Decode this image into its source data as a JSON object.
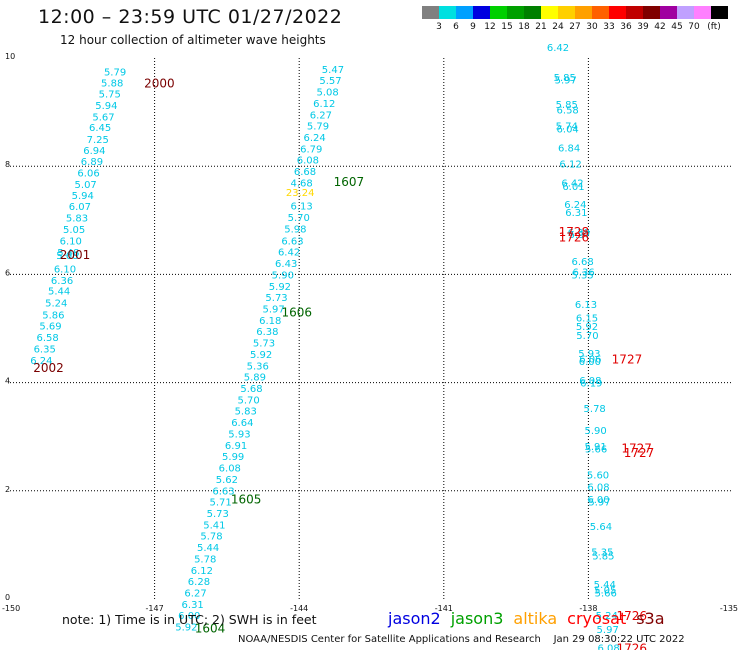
{
  "title": "12:00 – 23:59 UTC 01/27/2022",
  "subtitle": "12 hour collection of altimeter wave heights",
  "colorbar": {
    "colors": [
      "#808080",
      "#00e0e0",
      "#00a0ff",
      "#0000e0",
      "#00d000",
      "#00a000",
      "#008000",
      "#ffff00",
      "#ffd000",
      "#ffa000",
      "#ff6000",
      "#ff0000",
      "#c00000",
      "#800000",
      "#a000a0",
      "#c0a0ff",
      "#ff80ff",
      "#000000"
    ],
    "labels": [
      "3",
      "6",
      "9",
      "12",
      "15",
      "18",
      "21",
      "24",
      "27",
      "30",
      "33",
      "36",
      "39",
      "42",
      "45",
      "70",
      "(ft)"
    ]
  },
  "axes": {
    "x_ticks": [
      "-150",
      "-147",
      "-144",
      "-141",
      "-138",
      "-135"
    ],
    "y_ticks": [
      "0",
      "2",
      "4",
      "6",
      "8",
      "10"
    ]
  },
  "map_data": {
    "projection": "longitude-latitude, 10°N–0 latitude band, 150°W–135°W",
    "x_range": [
      -150,
      -135
    ],
    "y_range": [
      0,
      10
    ],
    "grid_lon": [
      -147,
      -144,
      -141,
      -138
    ],
    "grid_lat": [
      2,
      4,
      6,
      8
    ],
    "series": [
      {
        "color": "#00c8e6",
        "points": [
          {
            "lon": -147.82,
            "lat": 9.75,
            "v": "5.79"
          },
          {
            "lon": -147.88,
            "lat": 9.55,
            "v": "5.88"
          },
          {
            "lon": -147.93,
            "lat": 9.34,
            "v": "5.75"
          },
          {
            "lon": -148.0,
            "lat": 9.13,
            "v": "5.94"
          },
          {
            "lon": -148.06,
            "lat": 8.92,
            "v": "5.67"
          },
          {
            "lon": -148.13,
            "lat": 8.72,
            "v": "6.45"
          },
          {
            "lon": -148.18,
            "lat": 8.5,
            "v": "7.25"
          },
          {
            "lon": -148.25,
            "lat": 8.3,
            "v": "6.94"
          },
          {
            "lon": -148.3,
            "lat": 8.1,
            "v": "6.89"
          },
          {
            "lon": -148.37,
            "lat": 7.88,
            "v": "6.06"
          },
          {
            "lon": -148.43,
            "lat": 7.67,
            "v": "5.07"
          },
          {
            "lon": -148.49,
            "lat": 7.47,
            "v": "5.94"
          },
          {
            "lon": -148.55,
            "lat": 7.26,
            "v": "6.07"
          },
          {
            "lon": -148.61,
            "lat": 7.05,
            "v": "5.83"
          },
          {
            "lon": -148.67,
            "lat": 6.84,
            "v": "5.05"
          },
          {
            "lon": -148.74,
            "lat": 6.63,
            "v": "6.10"
          },
          {
            "lon": -148.79,
            "lat": 6.41,
            "v": "5.48"
          },
          {
            "lon": -148.81,
            "lat": 6.36,
            "v": "5.68"
          },
          {
            "lon": -148.86,
            "lat": 6.11,
            "v": "6.10"
          },
          {
            "lon": -148.92,
            "lat": 5.9,
            "v": "6.36"
          },
          {
            "lon": -148.98,
            "lat": 5.7,
            "v": "5.44"
          },
          {
            "lon": -149.04,
            "lat": 5.48,
            "v": "5.24"
          },
          {
            "lon": -149.1,
            "lat": 5.26,
            "v": "5.86"
          },
          {
            "lon": -149.16,
            "lat": 5.06,
            "v": "5.69"
          },
          {
            "lon": -149.22,
            "lat": 4.84,
            "v": "6.58"
          },
          {
            "lon": -149.28,
            "lat": 4.63,
            "v": "6.35"
          },
          {
            "lon": -149.35,
            "lat": 4.42,
            "v": "6.24"
          },
          {
            "lon": -143.3,
            "lat": 9.8,
            "v": "5.47"
          },
          {
            "lon": -143.35,
            "lat": 9.59,
            "v": "5.57"
          },
          {
            "lon": -143.41,
            "lat": 9.38,
            "v": "5.08"
          },
          {
            "lon": -143.48,
            "lat": 9.17,
            "v": "6.12"
          },
          {
            "lon": -143.55,
            "lat": 8.96,
            "v": "6.27"
          },
          {
            "lon": -143.61,
            "lat": 8.75,
            "v": "5.79"
          },
          {
            "lon": -143.68,
            "lat": 8.54,
            "v": "6.24"
          },
          {
            "lon": -143.75,
            "lat": 8.33,
            "v": "6.79"
          },
          {
            "lon": -143.82,
            "lat": 8.12,
            "v": "6.08"
          },
          {
            "lon": -143.88,
            "lat": 7.91,
            "v": "6.68"
          },
          {
            "lon": -143.95,
            "lat": 7.7,
            "v": "4.68"
          },
          {
            "lon": -143.95,
            "lat": 7.27,
            "v": "6.13"
          },
          {
            "lon": -144.01,
            "lat": 7.06,
            "v": "5.70"
          },
          {
            "lon": -144.08,
            "lat": 6.85,
            "v": "5.98"
          },
          {
            "lon": -144.14,
            "lat": 6.63,
            "v": "6.63"
          },
          {
            "lon": -144.21,
            "lat": 6.42,
            "v": "6.42"
          },
          {
            "lon": -144.27,
            "lat": 6.21,
            "v": "6.43"
          },
          {
            "lon": -144.34,
            "lat": 6.0,
            "v": "5.90"
          },
          {
            "lon": -144.4,
            "lat": 5.79,
            "v": "5.92"
          },
          {
            "lon": -144.47,
            "lat": 5.58,
            "v": "5.73"
          },
          {
            "lon": -144.53,
            "lat": 5.37,
            "v": "5.97"
          },
          {
            "lon": -144.6,
            "lat": 5.16,
            "v": "6.18"
          },
          {
            "lon": -144.66,
            "lat": 4.95,
            "v": "6.38"
          },
          {
            "lon": -144.73,
            "lat": 4.74,
            "v": "5.73"
          },
          {
            "lon": -144.79,
            "lat": 4.53,
            "v": "5.92"
          },
          {
            "lon": -144.86,
            "lat": 4.32,
            "v": "5.36"
          },
          {
            "lon": -144.92,
            "lat": 4.11,
            "v": "5.89"
          },
          {
            "lon": -144.99,
            "lat": 3.9,
            "v": "5.68"
          },
          {
            "lon": -145.05,
            "lat": 3.69,
            "v": "5.70"
          },
          {
            "lon": -145.11,
            "lat": 3.48,
            "v": "5.83"
          },
          {
            "lon": -145.18,
            "lat": 3.27,
            "v": "6.64"
          },
          {
            "lon": -145.24,
            "lat": 3.06,
            "v": "5.93"
          },
          {
            "lon": -145.31,
            "lat": 2.85,
            "v": "6.91"
          },
          {
            "lon": -145.37,
            "lat": 2.64,
            "v": "5.99"
          },
          {
            "lon": -145.44,
            "lat": 2.43,
            "v": "6.08"
          },
          {
            "lon": -145.5,
            "lat": 2.22,
            "v": "5.62"
          },
          {
            "lon": -145.57,
            "lat": 2.01,
            "v": "6.63"
          },
          {
            "lon": -145.63,
            "lat": 1.8,
            "v": "5.71"
          },
          {
            "lon": -145.69,
            "lat": 1.59,
            "v": "5.73"
          },
          {
            "lon": -145.76,
            "lat": 1.38,
            "v": "5.41"
          },
          {
            "lon": -145.82,
            "lat": 1.17,
            "v": "5.78"
          },
          {
            "lon": -145.89,
            "lat": 0.96,
            "v": "5.44"
          },
          {
            "lon": -145.95,
            "lat": 0.75,
            "v": "5.78"
          },
          {
            "lon": -146.02,
            "lat": 0.54,
            "v": "6.12"
          },
          {
            "lon": -146.08,
            "lat": 0.33,
            "v": "6.28"
          },
          {
            "lon": -146.15,
            "lat": 0.12,
            "v": "6.27"
          },
          {
            "lon": -146.21,
            "lat": -0.09,
            "v": "6.31"
          },
          {
            "lon": -146.28,
            "lat": -0.3,
            "v": "6.00"
          },
          {
            "lon": -146.34,
            "lat": -0.51,
            "v": "5.92"
          },
          {
            "lon": -138.63,
            "lat": 10.2,
            "v": "6.42"
          },
          {
            "lon": -138.49,
            "lat": 9.65,
            "v": "5.85"
          },
          {
            "lon": -138.47,
            "lat": 9.6,
            "v": "5.97"
          },
          {
            "lon": -138.45,
            "lat": 9.15,
            "v": "5.85"
          },
          {
            "lon": -138.43,
            "lat": 9.05,
            "v": "6.58"
          },
          {
            "lon": -138.45,
            "lat": 8.75,
            "v": "5.74"
          },
          {
            "lon": -138.43,
            "lat": 8.7,
            "v": "6.04"
          },
          {
            "lon": -138.4,
            "lat": 8.35,
            "v": "6.84"
          },
          {
            "lon": -138.37,
            "lat": 8.05,
            "v": "6.12"
          },
          {
            "lon": -138.33,
            "lat": 7.7,
            "v": "6.42"
          },
          {
            "lon": -138.31,
            "lat": 7.63,
            "v": "6.01"
          },
          {
            "lon": -138.27,
            "lat": 7.3,
            "v": "6.24"
          },
          {
            "lon": -138.25,
            "lat": 7.15,
            "v": "6.31"
          },
          {
            "lon": -138.2,
            "lat": 6.78,
            "v": "6.38"
          },
          {
            "lon": -138.18,
            "lat": 6.75,
            "v": "5.97"
          },
          {
            "lon": -138.12,
            "lat": 6.25,
            "v": "6.68"
          },
          {
            "lon": -138.1,
            "lat": 6.05,
            "v": "6.36"
          },
          {
            "lon": -138.12,
            "lat": 6.0,
            "v": "5.35"
          },
          {
            "lon": -138.05,
            "lat": 5.45,
            "v": "6.13"
          },
          {
            "lon": -138.03,
            "lat": 5.2,
            "v": "6.15"
          },
          {
            "lon": -138.03,
            "lat": 5.05,
            "v": "5.92"
          },
          {
            "lon": -138.02,
            "lat": 4.88,
            "v": "5.70"
          },
          {
            "lon": -137.98,
            "lat": 4.55,
            "v": "5.93"
          },
          {
            "lon": -137.96,
            "lat": 4.45,
            "v": "6.06"
          },
          {
            "lon": -137.97,
            "lat": 4.4,
            "v": "6.00"
          },
          {
            "lon": -137.96,
            "lat": 4.05,
            "v": "6.08"
          },
          {
            "lon": -137.94,
            "lat": 4.0,
            "v": "6.19"
          },
          {
            "lon": -137.87,
            "lat": 3.53,
            "v": "5.78"
          },
          {
            "lon": -137.85,
            "lat": 3.12,
            "v": "5.90"
          },
          {
            "lon": -137.85,
            "lat": 2.83,
            "v": "5.91"
          },
          {
            "lon": -137.84,
            "lat": 2.78,
            "v": "5.66"
          },
          {
            "lon": -137.8,
            "lat": 2.3,
            "v": "5.60"
          },
          {
            "lon": -137.79,
            "lat": 2.08,
            "v": "6.08"
          },
          {
            "lon": -137.79,
            "lat": 1.85,
            "v": "6.00"
          },
          {
            "lon": -137.77,
            "lat": 1.8,
            "v": "5.97"
          },
          {
            "lon": -137.74,
            "lat": 1.35,
            "v": "5.64"
          },
          {
            "lon": -137.71,
            "lat": 0.88,
            "v": "5.35"
          },
          {
            "lon": -137.69,
            "lat": 0.8,
            "v": "5.85"
          },
          {
            "lon": -137.66,
            "lat": 0.28,
            "v": "5.44"
          },
          {
            "lon": -137.65,
            "lat": 0.18,
            "v": "5.05"
          },
          {
            "lon": -137.64,
            "lat": 0.12,
            "v": "5.66"
          },
          {
            "lon": -137.62,
            "lat": -0.3,
            "v": "5.24"
          },
          {
            "lon": -137.6,
            "lat": -0.55,
            "v": "5.97"
          },
          {
            "lon": -137.58,
            "lat": -0.9,
            "v": "6.08"
          }
        ]
      },
      {
        "color": "#ffd800",
        "points": [
          {
            "lon": -143.98,
            "lat": 7.52,
            "v": "23.24"
          }
        ]
      }
    ],
    "pass_labels": [
      {
        "text": "2000",
        "color": "#7a0000",
        "lon": -146.9,
        "lat": 9.55
      },
      {
        "text": "2001",
        "color": "#7a0000",
        "lon": -148.65,
        "lat": 6.38
      },
      {
        "text": "2002",
        "color": "#7a0000",
        "lon": -149.2,
        "lat": 4.29
      },
      {
        "text": "1607",
        "color": "#006400",
        "lon": -142.97,
        "lat": 7.73
      },
      {
        "text": "1606",
        "color": "#006400",
        "lon": -144.05,
        "lat": 5.31
      },
      {
        "text": "1605",
        "color": "#006400",
        "lon": -145.1,
        "lat": 1.86
      },
      {
        "text": "1604",
        "color": "#006400",
        "lon": -145.85,
        "lat": -0.53
      },
      {
        "text": "1728",
        "color": "#e00000",
        "lon": -138.3,
        "lat": 6.8
      },
      {
        "text": "1726",
        "color": "#e00000",
        "lon": -138.3,
        "lat": 6.7
      },
      {
        "text": "1727",
        "color": "#e00000",
        "lon": -137.2,
        "lat": 4.45
      },
      {
        "text": "1727",
        "color": "#e00000",
        "lon": -137.0,
        "lat": 2.8
      },
      {
        "text": "1727",
        "color": "#e00000",
        "lon": -136.95,
        "lat": 2.72
      },
      {
        "text": "1726",
        "color": "#e00000",
        "lon": -137.1,
        "lat": -0.3
      },
      {
        "text": "1726",
        "color": "#e00000",
        "lon": -137.1,
        "lat": -0.9
      }
    ]
  },
  "note": "note: 1) Time is in UTC; 2) SWH is in feet",
  "legend": [
    {
      "name": "jason2",
      "color": "#0000e0"
    },
    {
      "name": "jason3",
      "color": "#00a000"
    },
    {
      "name": "altika",
      "color": "#ffa000"
    },
    {
      "name": "cryosat",
      "color": "#ff0000"
    },
    {
      "name": "s3a",
      "color": "#800000"
    }
  ],
  "footer": "NOAA/NESDIS Center for Satellite Applications and Research    Jan 29 08:30:22 UTC 2022"
}
